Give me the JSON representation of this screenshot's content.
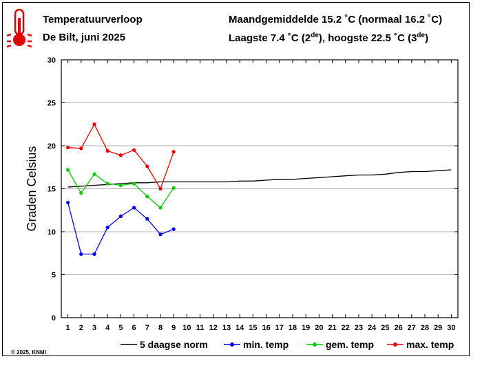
{
  "header": {
    "title": "Temperatuurverloop",
    "subtitle": "De Bilt, juni 2025",
    "month_mean_prefix": "Maandgemiddelde 15.2 ˚C (normaal 16.2 ˚C)",
    "extremes_low": "Laagste 7.4 ˚C (2",
    "extremes_low_sup": "de",
    "extremes_mid": "), hoogste 22.5 ˚C (3",
    "extremes_high_sup": "de",
    "extremes_end": ")"
  },
  "icon": "thermometer-icon",
  "copyright": "© 2025, KNMI",
  "colors": {
    "norm": "#000000",
    "min": "#0000ee",
    "mean": "#00cc00",
    "max": "#ee0000",
    "grid": "#999999"
  },
  "chart_data": {
    "type": "line",
    "ylabel": "Graden Celsius",
    "xlabel": "",
    "xlim": [
      1,
      30
    ],
    "ylim": [
      0,
      30
    ],
    "yticks": [
      0,
      5,
      10,
      15,
      20,
      25,
      30
    ],
    "xticks": [
      1,
      2,
      3,
      4,
      5,
      6,
      7,
      8,
      9,
      10,
      11,
      12,
      13,
      14,
      15,
      16,
      17,
      18,
      19,
      20,
      21,
      22,
      23,
      24,
      25,
      26,
      27,
      28,
      29,
      30
    ],
    "legend_position": "bottom",
    "series": [
      {
        "name": "5 daagse norm",
        "color_key": "norm",
        "markers": false,
        "x": [
          1,
          2,
          3,
          4,
          5,
          6,
          7,
          8,
          9,
          10,
          11,
          12,
          13,
          14,
          15,
          16,
          17,
          18,
          19,
          20,
          21,
          22,
          23,
          24,
          25,
          26,
          27,
          28,
          29,
          30
        ],
        "values": [
          15.2,
          15.3,
          15.4,
          15.5,
          15.6,
          15.7,
          15.7,
          15.8,
          15.8,
          15.8,
          15.8,
          15.8,
          15.8,
          15.9,
          15.9,
          16.0,
          16.1,
          16.1,
          16.2,
          16.3,
          16.4,
          16.5,
          16.6,
          16.6,
          16.7,
          16.9,
          17.0,
          17.0,
          17.1,
          17.2
        ]
      },
      {
        "name": "min. temp",
        "color_key": "min",
        "markers": true,
        "x": [
          1,
          2,
          3,
          4,
          5,
          6,
          7,
          8,
          9
        ],
        "values": [
          13.4,
          7.4,
          7.4,
          10.5,
          11.8,
          12.8,
          11.5,
          9.7,
          10.3
        ]
      },
      {
        "name": "gem. temp",
        "color_key": "mean",
        "markers": true,
        "x": [
          1,
          2,
          3,
          4,
          5,
          6,
          7,
          8,
          9
        ],
        "values": [
          17.2,
          14.5,
          16.7,
          15.6,
          15.4,
          15.6,
          14.1,
          12.8,
          15.1
        ]
      },
      {
        "name": "max. temp",
        "color_key": "max",
        "markers": true,
        "x": [
          1,
          2,
          3,
          4,
          5,
          6,
          7,
          8,
          9
        ],
        "values": [
          19.8,
          19.7,
          22.5,
          19.4,
          18.9,
          19.5,
          17.6,
          15.0,
          19.3
        ]
      }
    ]
  }
}
